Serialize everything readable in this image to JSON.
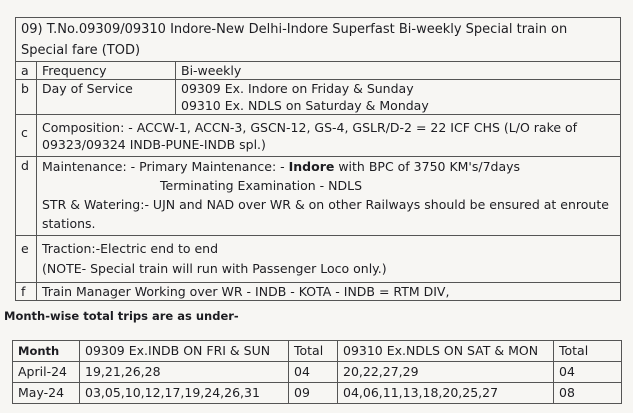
{
  "title": "09) T.No.09309/09310 Indore-New Delhi-Indore  Superfast Bi-weekly Special train on Special fare (TOD)",
  "rows": [
    {
      "key": "a",
      "label": "Frequency",
      "lines": [
        "Bi-weekly"
      ]
    },
    {
      "key": "b",
      "label": "Day of Service",
      "lines": [
        "09309 Ex. Indore on  Friday & Sunday",
        "09310 Ex. NDLS on   Saturday & Monday"
      ]
    },
    {
      "key": "c",
      "text": "Composition: - ACCW-1, ACCN-3, GSCN-12, GS-4, GSLR/D-2 = 22 ICF CHS  (L/O rake of 09323/09324 INDB-PUNE-INDB spl.)"
    },
    {
      "key": "d",
      "maint_prefix": "Maintenance: - Primary Maintenance: - ",
      "maint_bold": "Indore",
      "maint_suffix": " with  BPC of 3750 KM's/7days",
      "terminating": "Terminating Examination - NDLS",
      "str": "STR  & Watering:-  UJN and NAD over WR & on other Railways should be ensured at enroute stations."
    },
    {
      "key": "e",
      "lines": [
        "Traction:-Electric end to end",
        "(NOTE- Special train will run with Passenger Loco only.)"
      ]
    },
    {
      "key": "f",
      "text": "Train Manager Working over WR - INDB - KOTA - INDB = RTM DIV,"
    }
  ],
  "note": "Month-wise total trips are as under-",
  "trips": {
    "headers": [
      "Month",
      "09309 Ex.INDB ON FRI & SUN",
      "Total",
      "09310 Ex.NDLS ON SAT & MON",
      "Total"
    ],
    "rows": [
      [
        "April-24",
        "19,21,26,28",
        "04",
        "20,22,27,29",
        "04"
      ],
      [
        "May-24",
        "03,05,10,12,17,19,24,26,31",
        "09",
        "04,06,11,13,18,20,25,27",
        "08"
      ]
    ]
  }
}
